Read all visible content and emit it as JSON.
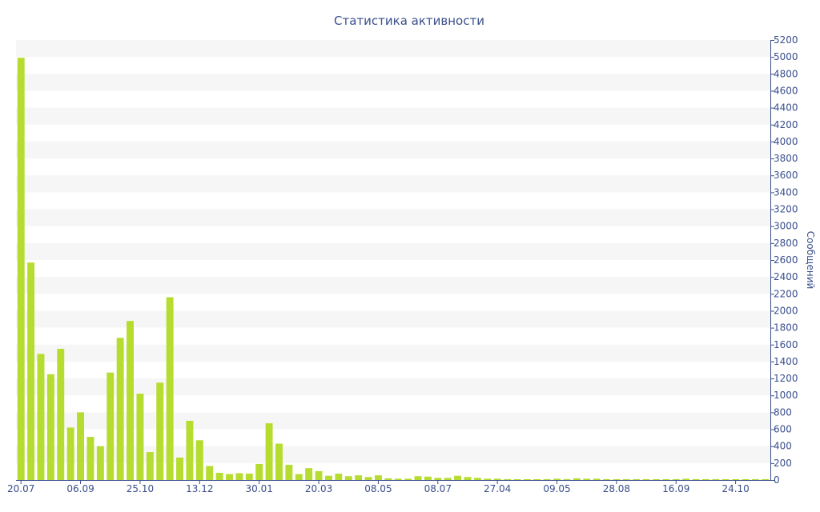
{
  "chart_data": {
    "type": "bar",
    "title": "Статистика активности",
    "ylabel": "Сообщений",
    "xlabel": "",
    "y_axis_side": "right",
    "ylim": [
      0,
      5200
    ],
    "ytick_step": 200,
    "grid": "horizontal alternating bands",
    "legend": "none",
    "x_tick_labels": [
      {
        "label": "20.07",
        "index": 0
      },
      {
        "label": "06.09",
        "index": 6
      },
      {
        "label": "25.10",
        "index": 12
      },
      {
        "label": "13.12",
        "index": 18
      },
      {
        "label": "30.01",
        "index": 24
      },
      {
        "label": "20.03",
        "index": 30
      },
      {
        "label": "08.05",
        "index": 36
      },
      {
        "label": "08.07",
        "index": 42
      },
      {
        "label": "27.04",
        "index": 48
      },
      {
        "label": "09.05",
        "index": 54
      },
      {
        "label": "28.08",
        "index": 60
      },
      {
        "label": "16.09",
        "index": 66
      },
      {
        "label": "24.10",
        "index": 72
      }
    ],
    "values": [
      4990,
      2570,
      1490,
      1250,
      1550,
      620,
      800,
      510,
      400,
      1270,
      1680,
      1880,
      1020,
      330,
      1150,
      2160,
      265,
      700,
      470,
      165,
      85,
      70,
      80,
      75,
      190,
      670,
      430,
      180,
      70,
      140,
      105,
      50,
      75,
      45,
      55,
      35,
      55,
      20,
      15,
      15,
      45,
      40,
      25,
      25,
      50,
      35,
      25,
      15,
      15,
      10,
      10,
      10,
      10,
      10,
      15,
      10,
      20,
      15,
      15,
      10,
      10,
      10,
      10,
      10,
      10,
      10,
      10,
      15,
      10,
      10,
      10,
      10,
      10,
      10,
      10,
      10
    ]
  },
  "colors": {
    "bar": "#b5dc2f",
    "text": "#3a4f8c",
    "band": "#f6f6f6",
    "axis": "#3a4f8c"
  }
}
